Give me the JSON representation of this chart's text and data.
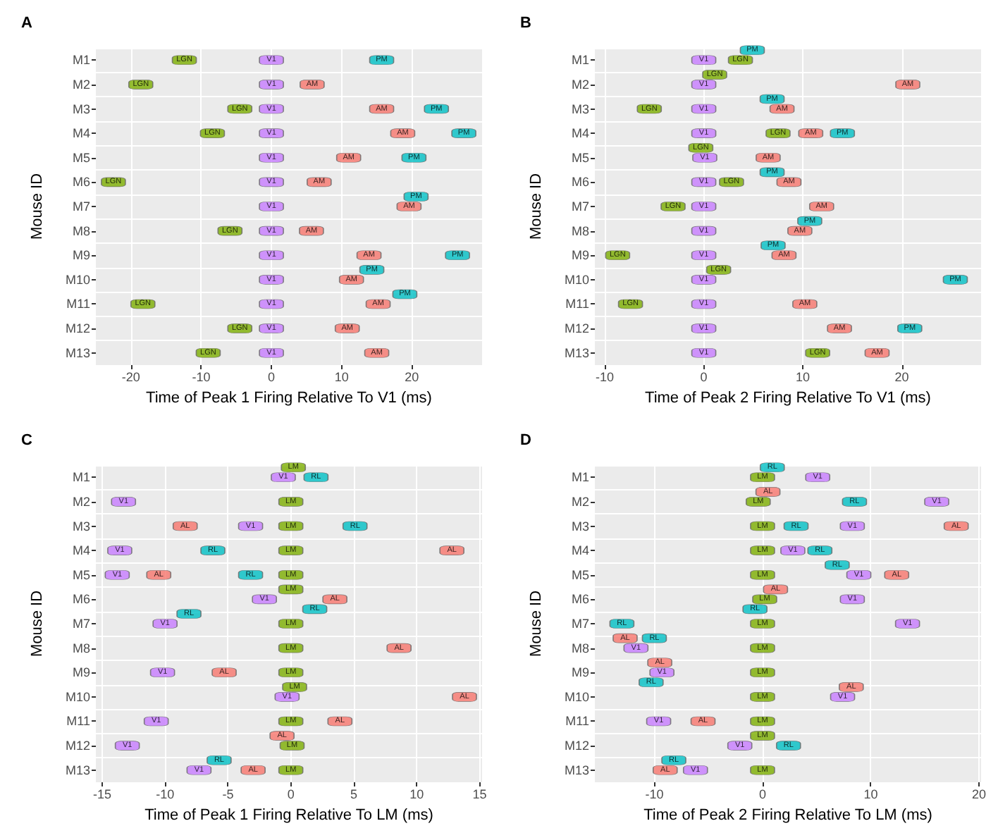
{
  "chart_data": [
    {
      "type": "scatter",
      "orientation": "horizontal",
      "title": "A",
      "xlabel": "Time of Peak 1 Firing Relative To V1 (ms)",
      "ylabel": "Mouse ID",
      "categories": [
        "M1",
        "M2",
        "M3",
        "M4",
        "M5",
        "M6",
        "M7",
        "M8",
        "M9",
        "M10",
        "M11",
        "M12",
        "M13"
      ],
      "xlim": [
        -25,
        30
      ],
      "xticks": [
        -20,
        -10,
        0,
        10,
        20
      ],
      "grid": true,
      "marker": "square",
      "legend": false,
      "series": [
        {
          "name": "V1",
          "color": "#c77cff",
          "values": [
            0,
            0,
            0,
            0,
            0,
            0,
            0,
            0,
            0,
            0,
            0,
            0,
            0
          ]
        },
        {
          "name": "LGN",
          "color": "#7cae00",
          "values": [
            -12.4,
            -18.6,
            -4.5,
            -8.4,
            null,
            -22.5,
            null,
            -5.9,
            null,
            null,
            -18.3,
            -4.5,
            -9.0
          ]
        },
        {
          "name": "AM",
          "color": "#f8766d",
          "values": [
            null,
            5.8,
            15.7,
            18.7,
            11.0,
            6.8,
            19.6,
            5.7,
            13.9,
            11.4,
            15.2,
            10.8,
            15.0
          ]
        },
        {
          "name": "PM",
          "color": "#00bfc4",
          "values": [
            15.7,
            null,
            23.5,
            27.4,
            20.3,
            null,
            20.6,
            null,
            26.5,
            14.3,
            19.0,
            null,
            null
          ]
        }
      ]
    },
    {
      "type": "scatter",
      "orientation": "horizontal",
      "title": "B",
      "xlabel": "Time of Peak 2 Firing Relative To V1 (ms)",
      "ylabel": "Mouse ID",
      "categories": [
        "M1",
        "M2",
        "M3",
        "M4",
        "M5",
        "M6",
        "M7",
        "M8",
        "M9",
        "M10",
        "M11",
        "M12",
        "M13"
      ],
      "xlim": [
        -11,
        28
      ],
      "xticks": [
        -10,
        0,
        10,
        20
      ],
      "grid": true,
      "marker": "square",
      "legend": false,
      "series": [
        {
          "name": "V1",
          "color": "#c77cff",
          "values": [
            0,
            0,
            0,
            0,
            0.1,
            0,
            0,
            0,
            0,
            0,
            0,
            0,
            0
          ]
        },
        {
          "name": "LGN",
          "color": "#7cae00",
          "values": [
            3.7,
            1.1,
            -5.5,
            7.5,
            -0.3,
            2.8,
            -3.1,
            null,
            -8.7,
            1.5,
            -7.4,
            null,
            11.5
          ]
        },
        {
          "name": "AM",
          "color": "#f8766d",
          "values": [
            null,
            20.6,
            7.9,
            10.8,
            6.5,
            8.6,
            11.9,
            9.7,
            8.1,
            null,
            10.2,
            13.7,
            17.5
          ]
        },
        {
          "name": "PM",
          "color": "#00bfc4",
          "values": [
            4.9,
            null,
            6.9,
            14.0,
            null,
            6.9,
            null,
            10.7,
            7.0,
            25.4,
            null,
            20.8,
            null
          ]
        }
      ]
    },
    {
      "type": "scatter",
      "orientation": "horizontal",
      "title": "C",
      "xlabel": "Time of Peak 1 Firing Relative To LM (ms)",
      "ylabel": "Mouse ID",
      "categories": [
        "M1",
        "M2",
        "M3",
        "M4",
        "M5",
        "M6",
        "M7",
        "M8",
        "M9",
        "M10",
        "M11",
        "M12",
        "M13"
      ],
      "xlim": [
        -15.5,
        15.2
      ],
      "xticks": [
        -15,
        -10,
        -5,
        0,
        5,
        10,
        15
      ],
      "grid": true,
      "marker": "square",
      "legend": false,
      "series": [
        {
          "name": "V1",
          "color": "#c77cff",
          "values": [
            -0.6,
            -13.3,
            -3.2,
            -13.6,
            -13.8,
            -2.1,
            -10.0,
            null,
            -10.2,
            -0.3,
            -10.7,
            -13.0,
            -7.3
          ]
        },
        {
          "name": "LM",
          "color": "#7cae00",
          "values": [
            0.2,
            0,
            0,
            0,
            0,
            0,
            0,
            0,
            0,
            0.3,
            0,
            0.1,
            0
          ]
        },
        {
          "name": "AL",
          "color": "#f8766d",
          "values": [
            null,
            null,
            -8.4,
            12.8,
            -10.5,
            3.5,
            null,
            8.6,
            -5.3,
            13.8,
            3.9,
            -0.7,
            -3.0
          ]
        },
        {
          "name": "RL",
          "color": "#00bfc4",
          "values": [
            2.0,
            null,
            5.1,
            -6.2,
            -3.2,
            1.9,
            -8.1,
            null,
            null,
            null,
            null,
            null,
            -5.7
          ]
        }
      ]
    },
    {
      "type": "scatter",
      "orientation": "horizontal",
      "title": "D",
      "xlabel": "Time of Peak 2 Firing Relative To LM (ms)",
      "ylabel": "Mouse ID",
      "categories": [
        "M1",
        "M2",
        "M3",
        "M4",
        "M5",
        "M6",
        "M7",
        "M8",
        "M9",
        "M10",
        "M11",
        "M12",
        "M13"
      ],
      "xlim": [
        -15.5,
        20.2
      ],
      "xticks": [
        -10,
        0,
        10,
        20
      ],
      "grid": true,
      "marker": "square",
      "legend": false,
      "series": [
        {
          "name": "V1",
          "color": "#c77cff",
          "values": [
            5.1,
            16.1,
            8.3,
            2.8,
            8.9,
            8.3,
            13.4,
            -11.7,
            -9.3,
            7.4,
            -9.6,
            -2.1,
            -6.2
          ]
        },
        {
          "name": "LM",
          "color": "#7cae00",
          "values": [
            0,
            -0.4,
            0,
            0,
            0,
            0.2,
            0,
            0,
            0,
            0,
            0,
            0,
            0
          ]
        },
        {
          "name": "AL",
          "color": "#f8766d",
          "values": [
            null,
            0.5,
            17.9,
            null,
            12.4,
            1.2,
            null,
            -12.7,
            -9.5,
            8.2,
            -5.5,
            null,
            -9.0
          ]
        },
        {
          "name": "RL",
          "color": "#00bfc4",
          "values": [
            0.9,
            8.5,
            3.1,
            5.3,
            6.9,
            -0.7,
            -13.0,
            -10.0,
            -10.3,
            null,
            null,
            2.4,
            -8.2
          ]
        }
      ]
    }
  ]
}
